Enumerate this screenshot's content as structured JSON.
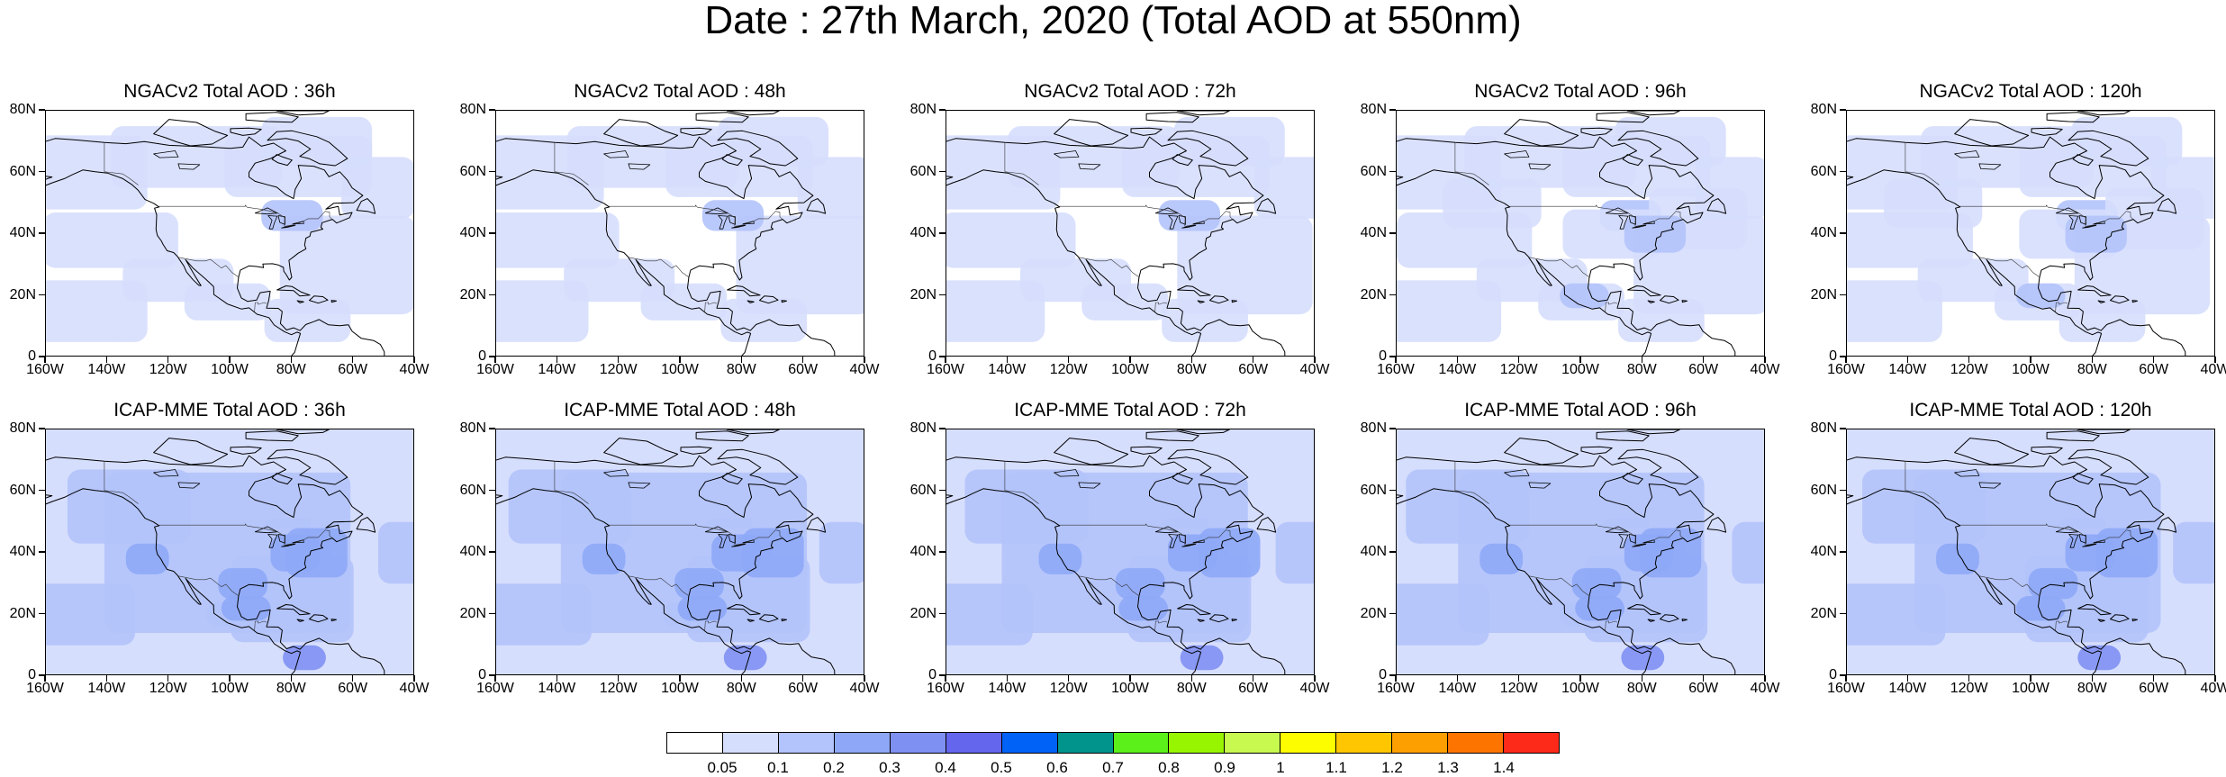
{
  "title": "Date : 27th March, 2020 (Total AOD at 550nm)",
  "lat_labels": [
    "80N",
    "60N",
    "40N",
    "20N",
    "0"
  ],
  "lon_labels": [
    "160W",
    "140W",
    "120W",
    "100W",
    "80W",
    "60W",
    "40W"
  ],
  "panels": [
    {
      "title": "NGACv2 Total AOD : 36h",
      "model": "NGACv2",
      "lead": "36h",
      "intensity": 0
    },
    {
      "title": "NGACv2 Total AOD : 48h",
      "model": "NGACv2",
      "lead": "48h",
      "intensity": 0
    },
    {
      "title": "NGACv2 Total AOD : 72h",
      "model": "NGACv2",
      "lead": "72h",
      "intensity": 0
    },
    {
      "title": "NGACv2 Total AOD : 96h",
      "model": "NGACv2",
      "lead": "96h",
      "intensity": 1
    },
    {
      "title": "NGACv2 Total AOD : 120h",
      "model": "NGACv2",
      "lead": "120h",
      "intensity": 1
    },
    {
      "title": "ICAP-MME Total AOD : 36h",
      "model": "ICAP-MME",
      "lead": "36h",
      "intensity": 2
    },
    {
      "title": "ICAP-MME Total AOD : 48h",
      "model": "ICAP-MME",
      "lead": "48h",
      "intensity": 2
    },
    {
      "title": "ICAP-MME Total AOD : 72h",
      "model": "ICAP-MME",
      "lead": "72h",
      "intensity": 2
    },
    {
      "title": "ICAP-MME Total AOD : 96h",
      "model": "ICAP-MME",
      "lead": "96h",
      "intensity": 2
    },
    {
      "title": "ICAP-MME Total AOD : 120h",
      "model": "ICAP-MME",
      "lead": "120h",
      "intensity": 2
    }
  ],
  "colorbar": {
    "labels": [
      "0.05",
      "0.1",
      "0.2",
      "0.3",
      "0.4",
      "0.5",
      "0.6",
      "0.7",
      "0.8",
      "0.9",
      "1",
      "1.1",
      "1.2",
      "1.3",
      "1.4"
    ],
    "colors": [
      "#ffffff",
      "#d6defd",
      "#b3c3fb",
      "#8ea8f7",
      "#7f90f3",
      "#6466ee",
      "#0062f7",
      "#00948c",
      "#5bf01a",
      "#97f502",
      "#c8f94f",
      "#fdfd00",
      "#fdc600",
      "#fd9f00",
      "#fd7500",
      "#fd2a1a"
    ]
  }
}
